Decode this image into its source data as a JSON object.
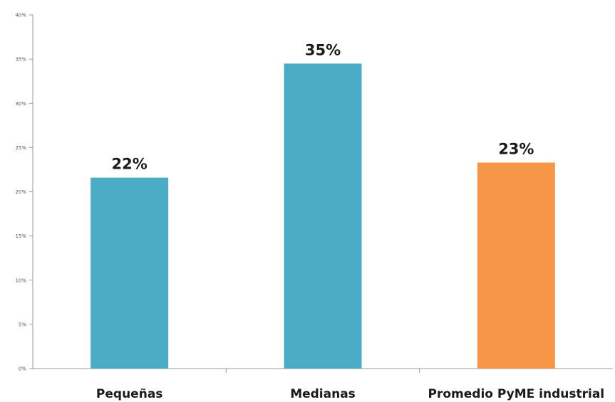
{
  "chart_data": {
    "type": "bar",
    "title": "",
    "xlabel": "",
    "ylabel": "",
    "categories": [
      "Pequeñas",
      "Medianas",
      "Promedio PyME industrial"
    ],
    "values": [
      21.6,
      34.5,
      23.3
    ],
    "data_labels": [
      "22%",
      "35%",
      "23%"
    ],
    "bar_colors": [
      "#4bacc6",
      "#4bacc6",
      "#f79646"
    ],
    "ylim": [
      0,
      40
    ],
    "y_ticks": [
      0,
      5,
      10,
      15,
      20,
      25,
      30,
      35,
      40
    ],
    "y_tick_labels": [
      "0%",
      "5%",
      "10%",
      "15%",
      "20%",
      "25%",
      "30%",
      "35%",
      "40%"
    ],
    "grid": false,
    "legend": "none"
  },
  "colors": {
    "axis": "#9a9a9a",
    "bar_primary": "#4bacc6",
    "bar_highlight": "#f79646"
  }
}
